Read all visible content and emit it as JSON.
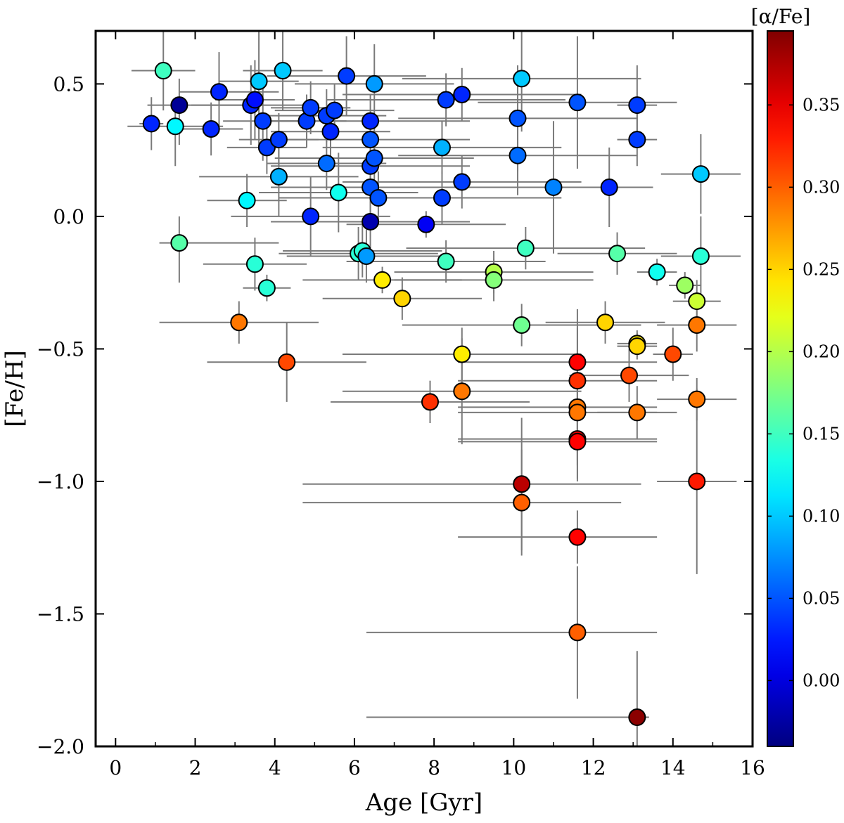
{
  "chart_data": {
    "type": "scatter",
    "title": "",
    "xlabel": "Age [Gyr]",
    "ylabel": "[Fe/H]",
    "xlim": [
      -0.5,
      16
    ],
    "ylim": [
      -2.0,
      0.7
    ],
    "xticks": [
      0,
      2,
      4,
      6,
      8,
      10,
      12,
      14,
      16
    ],
    "xtick_labels": [
      "0",
      "2",
      "4",
      "6",
      "8",
      "10",
      "12",
      "14",
      "16"
    ],
    "yticks": [
      0.5,
      0.0,
      -0.5,
      -1.0,
      -1.5,
      -2.0
    ],
    "ytick_labels": [
      "0.5",
      "0.0",
      "−0.5",
      "−1.0",
      "−1.5",
      "−2.0"
    ],
    "grid": false,
    "colorbar": {
      "label": "[α/Fe]",
      "range": [
        -0.04,
        0.395
      ],
      "ticks": [
        0.0,
        0.05,
        0.1,
        0.15,
        0.2,
        0.25,
        0.3,
        0.35
      ],
      "tick_labels": [
        "0.00",
        "0.05",
        "0.10",
        "0.15",
        "0.20",
        "0.25",
        "0.30",
        "0.35"
      ],
      "colormap": "jet"
    },
    "points": [
      {
        "age": 0.9,
        "feh": 0.35,
        "alpha": 0.03,
        "xerr": [
          0.3,
          0.3
        ],
        "yerr": [
          0.1,
          0.1
        ]
      },
      {
        "age": 1.2,
        "feh": 0.55,
        "alpha": 0.15,
        "xerr": [
          0.8,
          0.8
        ],
        "yerr": [
          0.15,
          0.15
        ]
      },
      {
        "age": 1.5,
        "feh": 0.34,
        "alpha": 0.12,
        "xerr": [
          1.2,
          1.2
        ],
        "yerr": [
          0.15,
          0.1
        ]
      },
      {
        "age": 1.6,
        "feh": 0.42,
        "alpha": -0.03,
        "xerr": [
          0.8,
          2.0
        ],
        "yerr": [
          0.15,
          0.1
        ]
      },
      {
        "age": 1.6,
        "feh": -0.1,
        "alpha": 0.16,
        "xerr": [
          0.5,
          2.5
        ],
        "yerr": [
          0.15,
          0.1
        ]
      },
      {
        "age": 2.4,
        "feh": 0.33,
        "alpha": 0.03,
        "xerr": [
          0.8,
          0.8
        ],
        "yerr": [
          0.1,
          0.1
        ]
      },
      {
        "age": 2.6,
        "feh": 0.47,
        "alpha": 0.03,
        "xerr": [
          1.0,
          1.5
        ],
        "yerr": [
          0.15,
          0.15
        ]
      },
      {
        "age": 3.1,
        "feh": -0.4,
        "alpha": 0.29,
        "xerr": [
          2.0,
          2.0
        ],
        "yerr": [
          0.08,
          0.08
        ]
      },
      {
        "age": 3.3,
        "feh": 0.06,
        "alpha": 0.12,
        "xerr": [
          1.0,
          1.0
        ],
        "yerr": [
          0.1,
          0.1
        ]
      },
      {
        "age": 3.4,
        "feh": 0.42,
        "alpha": 0.03,
        "xerr": [
          1.5,
          1.5
        ],
        "yerr": [
          0.15,
          0.15
        ]
      },
      {
        "age": 3.5,
        "feh": 0.44,
        "alpha": 0.02,
        "xerr": [
          1.0,
          1.0
        ],
        "yerr": [
          0.15,
          0.15
        ]
      },
      {
        "age": 3.5,
        "feh": -0.18,
        "alpha": 0.14,
        "xerr": [
          1.3,
          1.3
        ],
        "yerr": [
          0.1,
          0.1
        ]
      },
      {
        "age": 3.6,
        "feh": 0.51,
        "alpha": 0.1,
        "xerr": [
          1.0,
          1.0
        ],
        "yerr": [
          0.25,
          0.2
        ]
      },
      {
        "age": 3.7,
        "feh": 0.36,
        "alpha": 0.04,
        "xerr": [
          1.0,
          1.0
        ],
        "yerr": [
          0.15,
          0.15
        ]
      },
      {
        "age": 3.8,
        "feh": 0.26,
        "alpha": 0.04,
        "xerr": [
          1.0,
          1.0
        ],
        "yerr": [
          0.1,
          0.1
        ]
      },
      {
        "age": 3.8,
        "feh": -0.27,
        "alpha": 0.14,
        "xerr": [
          0.6,
          0.6
        ],
        "yerr": [
          0.05,
          0.05
        ]
      },
      {
        "age": 4.1,
        "feh": 0.29,
        "alpha": 0.04,
        "xerr": [
          1.0,
          1.0
        ],
        "yerr": [
          0.1,
          0.1
        ]
      },
      {
        "age": 4.1,
        "feh": 0.15,
        "alpha": 0.09,
        "xerr": [
          2.0,
          2.0
        ],
        "yerr": [
          0.15,
          0.15
        ]
      },
      {
        "age": 4.2,
        "feh": 0.55,
        "alpha": 0.1,
        "xerr": [
          1.0,
          1.0
        ],
        "yerr": [
          0.15,
          0.15
        ]
      },
      {
        "age": 4.3,
        "feh": -0.55,
        "alpha": 0.31,
        "xerr": [
          2.0,
          2.0
        ],
        "yerr": [
          0.15,
          0.15
        ]
      },
      {
        "age": 4.8,
        "feh": 0.36,
        "alpha": 0.04,
        "xerr": [
          1.0,
          1.0
        ],
        "yerr": [
          0.1,
          0.1
        ]
      },
      {
        "age": 4.9,
        "feh": 0.41,
        "alpha": 0.04,
        "xerr": [
          1.0,
          1.0
        ],
        "yerr": [
          0.1,
          0.1
        ]
      },
      {
        "age": 4.9,
        "feh": 0.0,
        "alpha": 0.03,
        "xerr": [
          2.0,
          2.0
        ],
        "yerr": [
          0.15,
          0.15
        ]
      },
      {
        "age": 5.3,
        "feh": 0.38,
        "alpha": 0.04,
        "xerr": [
          1.5,
          1.5
        ],
        "yerr": [
          0.1,
          0.1
        ]
      },
      {
        "age": 5.3,
        "feh": 0.2,
        "alpha": 0.06,
        "xerr": [
          1.5,
          1.5
        ],
        "yerr": [
          0.1,
          0.1
        ]
      },
      {
        "age": 5.4,
        "feh": 0.32,
        "alpha": 0.03,
        "xerr": [
          1.5,
          1.5
        ],
        "yerr": [
          0.1,
          0.1
        ]
      },
      {
        "age": 5.5,
        "feh": 0.4,
        "alpha": 0.04,
        "xerr": [
          1.5,
          1.5
        ],
        "yerr": [
          0.1,
          0.1
        ]
      },
      {
        "age": 5.6,
        "feh": 0.09,
        "alpha": 0.13,
        "xerr": [
          2.0,
          2.0
        ],
        "yerr": [
          0.15,
          0.15
        ]
      },
      {
        "age": 5.8,
        "feh": 0.53,
        "alpha": 0.04,
        "xerr": [
          2.0,
          2.0
        ],
        "yerr": [
          0.15,
          0.15
        ]
      },
      {
        "age": 6.1,
        "feh": -0.14,
        "alpha": 0.14,
        "xerr": [
          2.0,
          2.0
        ],
        "yerr": [
          0.1,
          0.1
        ]
      },
      {
        "age": 6.2,
        "feh": -0.13,
        "alpha": 0.14,
        "xerr": [
          2.0,
          2.0
        ],
        "yerr": [
          0.1,
          0.1
        ]
      },
      {
        "age": 6.3,
        "feh": -0.15,
        "alpha": 0.08,
        "xerr": [
          2.0,
          2.0
        ],
        "yerr": [
          0.1,
          0.1
        ]
      },
      {
        "age": 6.4,
        "feh": 0.36,
        "alpha": 0.03,
        "xerr": [
          2.5,
          2.5
        ],
        "yerr": [
          0.1,
          0.1
        ]
      },
      {
        "age": 6.4,
        "feh": 0.29,
        "alpha": 0.05,
        "xerr": [
          2.5,
          2.5
        ],
        "yerr": [
          0.1,
          0.1
        ]
      },
      {
        "age": 6.4,
        "feh": 0.19,
        "alpha": 0.04,
        "xerr": [
          2.5,
          2.5
        ],
        "yerr": [
          0.1,
          0.1
        ]
      },
      {
        "age": 6.4,
        "feh": 0.11,
        "alpha": 0.05,
        "xerr": [
          2.5,
          2.5
        ],
        "yerr": [
          0.1,
          0.1
        ]
      },
      {
        "age": 6.4,
        "feh": -0.02,
        "alpha": -0.02,
        "xerr": [
          2.5,
          2.5
        ],
        "yerr": [
          0.1,
          0.1
        ]
      },
      {
        "age": 6.5,
        "feh": 0.5,
        "alpha": 0.08,
        "xerr": [
          2.0,
          2.0
        ],
        "yerr": [
          0.25,
          0.15
        ]
      },
      {
        "age": 6.5,
        "feh": 0.22,
        "alpha": 0.05,
        "xerr": [
          2.5,
          2.5
        ],
        "yerr": [
          0.1,
          0.1
        ]
      },
      {
        "age": 6.6,
        "feh": 0.07,
        "alpha": 0.05,
        "xerr": [
          2.5,
          2.5
        ],
        "yerr": [
          0.1,
          0.1
        ]
      },
      {
        "age": 6.7,
        "feh": -0.24,
        "alpha": 0.24,
        "xerr": [
          2.0,
          2.0
        ],
        "yerr": [
          0.05,
          0.05
        ]
      },
      {
        "age": 7.2,
        "feh": -0.31,
        "alpha": 0.25,
        "xerr": [
          2.0,
          2.0
        ],
        "yerr": [
          0.08,
          0.08
        ]
      },
      {
        "age": 7.8,
        "feh": -0.03,
        "alpha": 0.01,
        "xerr": [
          2.0,
          2.0
        ],
        "yerr": [
          0.05,
          0.05
        ]
      },
      {
        "age": 7.9,
        "feh": -0.7,
        "alpha": 0.32,
        "xerr": [
          2.5,
          2.5
        ],
        "yerr": [
          0.08,
          0.08
        ]
      },
      {
        "age": 8.2,
        "feh": 0.26,
        "alpha": 0.09,
        "xerr": [
          3.0,
          3.0
        ],
        "yerr": [
          0.1,
          0.1
        ]
      },
      {
        "age": 8.2,
        "feh": 0.07,
        "alpha": 0.04,
        "xerr": [
          3.0,
          3.0
        ],
        "yerr": [
          0.1,
          0.1
        ]
      },
      {
        "age": 8.3,
        "feh": 0.44,
        "alpha": 0.04,
        "xerr": [
          3.0,
          3.0
        ],
        "yerr": [
          0.1,
          0.1
        ]
      },
      {
        "age": 8.3,
        "feh": -0.17,
        "alpha": 0.15,
        "xerr": [
          2.5,
          2.5
        ],
        "yerr": [
          0.08,
          0.08
        ]
      },
      {
        "age": 8.7,
        "feh": 0.46,
        "alpha": 0.03,
        "xerr": [
          3.0,
          3.0
        ],
        "yerr": [
          0.1,
          0.1
        ]
      },
      {
        "age": 8.7,
        "feh": 0.13,
        "alpha": 0.04,
        "xerr": [
          3.0,
          3.0
        ],
        "yerr": [
          0.1,
          0.1
        ]
      },
      {
        "age": 8.7,
        "feh": -0.52,
        "alpha": 0.24,
        "xerr": [
          3.0,
          3.0
        ],
        "yerr": [
          0.1,
          0.1
        ]
      },
      {
        "age": 8.7,
        "feh": -0.66,
        "alpha": 0.29,
        "xerr": [
          3.0,
          3.0
        ],
        "yerr": [
          0.2,
          0.2
        ]
      },
      {
        "age": 9.5,
        "feh": -0.21,
        "alpha": 0.2,
        "xerr": [
          2.5,
          2.5
        ],
        "yerr": [
          0.08,
          0.08
        ]
      },
      {
        "age": 9.5,
        "feh": -0.24,
        "alpha": 0.18,
        "xerr": [
          2.5,
          2.5
        ],
        "yerr": [
          0.08,
          0.08
        ]
      },
      {
        "age": 10.1,
        "feh": 0.37,
        "alpha": 0.05,
        "xerr": [
          3.0,
          3.0
        ],
        "yerr": [
          0.2,
          0.2
        ]
      },
      {
        "age": 10.1,
        "feh": 0.23,
        "alpha": 0.06,
        "xerr": [
          3.0,
          3.0
        ],
        "yerr": [
          0.15,
          0.15
        ]
      },
      {
        "age": 10.2,
        "feh": 0.52,
        "alpha": 0.1,
        "xerr": [
          3.0,
          3.0
        ],
        "yerr": [
          0.2,
          0.2
        ]
      },
      {
        "age": 10.2,
        "feh": -0.41,
        "alpha": 0.17,
        "xerr": [
          3.0,
          3.0
        ],
        "yerr": [
          0.08,
          0.08
        ]
      },
      {
        "age": 10.2,
        "feh": -1.01,
        "alpha": 0.37,
        "xerr": [
          5.5,
          3.0
        ],
        "yerr": [
          0.25,
          0.25
        ]
      },
      {
        "age": 10.2,
        "feh": -1.08,
        "alpha": 0.3,
        "xerr": [
          5.5,
          2.5
        ],
        "yerr": [
          0.2,
          0.2
        ]
      },
      {
        "age": 10.3,
        "feh": -0.12,
        "alpha": 0.15,
        "xerr": [
          3.0,
          3.0
        ],
        "yerr": [
          0.08,
          0.08
        ]
      },
      {
        "age": 11.0,
        "feh": 0.11,
        "alpha": 0.07,
        "xerr": [
          2.5,
          2.5
        ],
        "yerr": [
          0.25,
          0.25
        ]
      },
      {
        "age": 11.6,
        "feh": 0.43,
        "alpha": 0.05,
        "xerr": [
          2.5,
          2.5
        ],
        "yerr": [
          0.25,
          0.25
        ]
      },
      {
        "age": 11.6,
        "feh": -0.55,
        "alpha": 0.34,
        "xerr": [
          3.0,
          2.0
        ],
        "yerr": [
          0.2,
          0.2
        ]
      },
      {
        "age": 11.6,
        "feh": -0.62,
        "alpha": 0.32,
        "xerr": [
          3.0,
          2.0
        ],
        "yerr": [
          0.2,
          0.2
        ]
      },
      {
        "age": 11.6,
        "feh": -0.72,
        "alpha": 0.29,
        "xerr": [
          3.0,
          2.0
        ],
        "yerr": [
          0.2,
          0.2
        ]
      },
      {
        "age": 11.6,
        "feh": -0.74,
        "alpha": 0.29,
        "xerr": [
          3.0,
          2.0
        ],
        "yerr": [
          0.2,
          0.2
        ]
      },
      {
        "age": 11.6,
        "feh": -0.84,
        "alpha": 0.35,
        "xerr": [
          3.0,
          2.0
        ],
        "yerr": [
          0.15,
          0.15
        ]
      },
      {
        "age": 11.6,
        "feh": -0.85,
        "alpha": 0.34,
        "xerr": [
          3.0,
          2.0
        ],
        "yerr": [
          0.15,
          0.15
        ]
      },
      {
        "age": 11.6,
        "feh": -1.21,
        "alpha": 0.34,
        "xerr": [
          3.0,
          2.0
        ],
        "yerr": [
          0.1,
          0.1
        ]
      },
      {
        "age": 11.6,
        "feh": -1.57,
        "alpha": 0.3,
        "xerr": [
          5.3,
          2.0
        ],
        "yerr": [
          0.25,
          0.25
        ]
      },
      {
        "age": 12.4,
        "feh": 0.11,
        "alpha": 0.03,
        "xerr": [
          1.0,
          1.0
        ],
        "yerr": [
          0.15,
          0.15
        ]
      },
      {
        "age": 12.3,
        "feh": -0.4,
        "alpha": 0.25,
        "xerr": [
          1.5,
          1.5
        ],
        "yerr": [
          0.08,
          0.08
        ]
      },
      {
        "age": 12.6,
        "feh": -0.14,
        "alpha": 0.16,
        "xerr": [
          1.5,
          1.5
        ],
        "yerr": [
          0.08,
          0.08
        ]
      },
      {
        "age": 12.9,
        "feh": -0.6,
        "alpha": 0.31,
        "xerr": [
          1.5,
          1.5
        ],
        "yerr": [
          0.1,
          0.1
        ]
      },
      {
        "age": 13.1,
        "feh": 0.42,
        "alpha": 0.04,
        "xerr": [
          0.5,
          0.5
        ],
        "yerr": [
          0.15,
          0.15
        ]
      },
      {
        "age": 13.1,
        "feh": 0.29,
        "alpha": 0.04,
        "xerr": [
          0.5,
          0.5
        ],
        "yerr": [
          0.1,
          0.1
        ]
      },
      {
        "age": 13.1,
        "feh": -0.48,
        "alpha": 0.24,
        "xerr": [
          0.5,
          0.5
        ],
        "yerr": [
          0.05,
          0.05
        ]
      },
      {
        "age": 13.1,
        "feh": -0.49,
        "alpha": 0.25,
        "xerr": [
          0.5,
          0.5
        ],
        "yerr": [
          0.05,
          0.05
        ]
      },
      {
        "age": 13.1,
        "feh": -0.74,
        "alpha": 0.29,
        "xerr": [
          1.0,
          1.0
        ],
        "yerr": [
          0.1,
          0.1
        ]
      },
      {
        "age": 13.1,
        "feh": -1.89,
        "alpha": 0.39,
        "xerr": [
          6.8,
          0.3
        ],
        "yerr": [
          0.25,
          0.25
        ]
      },
      {
        "age": 13.6,
        "feh": -0.21,
        "alpha": 0.13,
        "xerr": [
          0.5,
          0.5
        ],
        "yerr": [
          0.05,
          0.05
        ]
      },
      {
        "age": 14.0,
        "feh": -0.52,
        "alpha": 0.31,
        "xerr": [
          0.5,
          0.5
        ],
        "yerr": [
          0.1,
          0.1
        ]
      },
      {
        "age": 14.3,
        "feh": -0.26,
        "alpha": 0.19,
        "xerr": [
          0.4,
          0.4
        ],
        "yerr": [
          0.05,
          0.05
        ]
      },
      {
        "age": 14.6,
        "feh": -0.32,
        "alpha": 0.21,
        "xerr": [
          0.6,
          0.6
        ],
        "yerr": [
          0.08,
          0.08
        ]
      },
      {
        "age": 14.6,
        "feh": -0.41,
        "alpha": 0.29,
        "xerr": [
          1.0,
          1.0
        ],
        "yerr": [
          0.1,
          0.1
        ]
      },
      {
        "age": 14.6,
        "feh": -0.69,
        "alpha": 0.29,
        "xerr": [
          1.0,
          1.0
        ],
        "yerr": [
          0.08,
          0.08
        ]
      },
      {
        "age": 14.6,
        "feh": -1.0,
        "alpha": 0.33,
        "xerr": [
          1.0,
          1.0
        ],
        "yerr": [
          0.35,
          0.35
        ]
      },
      {
        "age": 14.7,
        "feh": 0.16,
        "alpha": 0.1,
        "xerr": [
          1.0,
          1.0
        ],
        "yerr": [
          0.15,
          0.15
        ]
      },
      {
        "age": 14.7,
        "feh": -0.15,
        "alpha": 0.14,
        "xerr": [
          1.0,
          1.0
        ],
        "yerr": [
          0.15,
          0.15
        ]
      }
    ]
  }
}
